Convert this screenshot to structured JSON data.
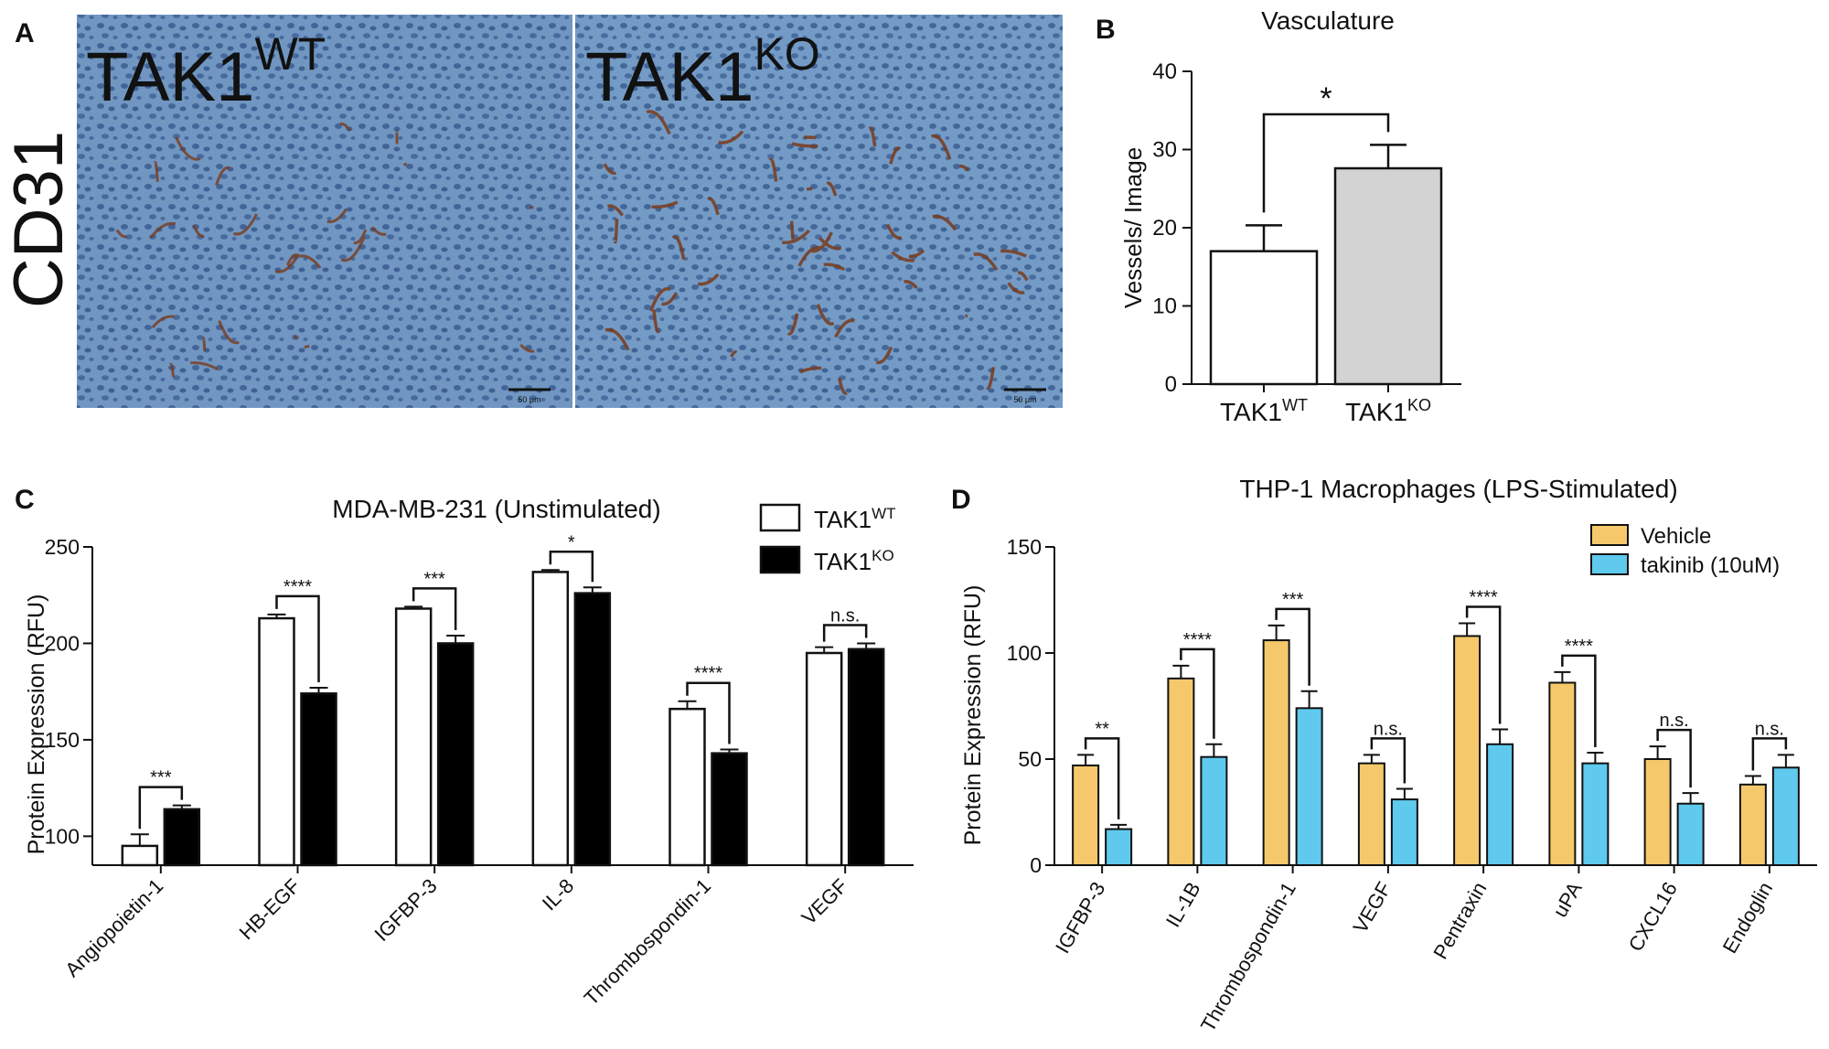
{
  "panels": {
    "a": {
      "letter": "A",
      "stain_label": "CD31",
      "image_wt": {
        "label": "TAK1",
        "sup": "WT",
        "scale_text": "50 μm"
      },
      "image_ko": {
        "label": "TAK1",
        "sup": "KO",
        "scale_text": "50 μm"
      }
    },
    "b": {
      "letter": "B"
    },
    "c": {
      "letter": "C"
    },
    "d": {
      "letter": "D"
    }
  },
  "colors": {
    "wt_fill": "#ffffff",
    "ko_fill_b": "#d3d3d3",
    "ko_fill_c": "#000000",
    "vehicle": "#f5c96b",
    "takinib": "#5fc9ee",
    "tissue_bg": "#5f86b8",
    "vessel": "#7a3b1c"
  },
  "chart_data": [
    {
      "id": "B",
      "type": "bar",
      "title": "Vasculature",
      "ylabel": "Vessels/ Image",
      "xlabel": "",
      "ylim": [
        0,
        40
      ],
      "yticks": [
        0,
        10,
        20,
        30,
        40
      ],
      "categories": [
        {
          "label": "TAK1",
          "sup": "WT"
        },
        {
          "label": "TAK1",
          "sup": "KO"
        }
      ],
      "values": [
        17,
        27.6
      ],
      "errors": [
        3.3,
        3.0
      ],
      "bar_colors": [
        "#ffffff",
        "#d3d3d3"
      ],
      "significance": [
        {
          "from": 0,
          "to": 1,
          "label": "*"
        }
      ]
    },
    {
      "id": "C",
      "type": "bar",
      "title": "MDA-MB-231 (Unstimulated)",
      "ylabel": "Protein Expression (RFU)",
      "xlabel": "",
      "ylim": [
        85,
        250
      ],
      "yticks": [
        100,
        150,
        200,
        250
      ],
      "categories": [
        "Angiopoietin-1",
        "HB-EGF",
        "IGFBP-3",
        "IL-8",
        "Thrombospondin-1",
        "VEGF"
      ],
      "series": [
        {
          "name": "TAK1",
          "sup": "WT",
          "color": "#ffffff",
          "values": [
            95,
            213,
            218,
            237,
            166,
            195
          ],
          "errors": [
            6,
            2,
            1,
            1,
            4,
            3
          ]
        },
        {
          "name": "TAK1",
          "sup": "KO",
          "color": "#000000",
          "values": [
            114,
            174,
            200,
            226,
            143,
            197
          ],
          "errors": [
            2,
            3,
            4,
            3,
            2,
            3
          ]
        }
      ],
      "significance": [
        "***",
        "****",
        "***",
        "*",
        "****",
        "n.s."
      ],
      "legend": "top-right"
    },
    {
      "id": "D",
      "type": "bar",
      "title": "THP-1 Macrophages (LPS-Stimulated)",
      "ylabel": "Protein Expression (RFU)",
      "xlabel": "",
      "ylim": [
        0,
        150
      ],
      "yticks": [
        0,
        50,
        100,
        150
      ],
      "categories": [
        "IGFBP-3",
        "IL-1B",
        "Thrombospondin-1",
        "VEGF",
        "Pentraxin",
        "uPA",
        "CXCL16",
        "Endoglin"
      ],
      "series": [
        {
          "name": "Vehicle",
          "color": "#f5c96b",
          "values": [
            47,
            88,
            106,
            48,
            108,
            86,
            50,
            38
          ],
          "errors": [
            5,
            6,
            7,
            4,
            6,
            5,
            6,
            4
          ]
        },
        {
          "name": "takinib (10uM)",
          "color": "#5fc9ee",
          "values": [
            17,
            51,
            74,
            31,
            57,
            48,
            29,
            46
          ],
          "errors": [
            2,
            6,
            8,
            5,
            7,
            5,
            5,
            6
          ]
        }
      ],
      "significance": [
        "**",
        "****",
        "***",
        "n.s.",
        "****",
        "****",
        "n.s.",
        "n.s."
      ],
      "legend": "top-right"
    }
  ]
}
